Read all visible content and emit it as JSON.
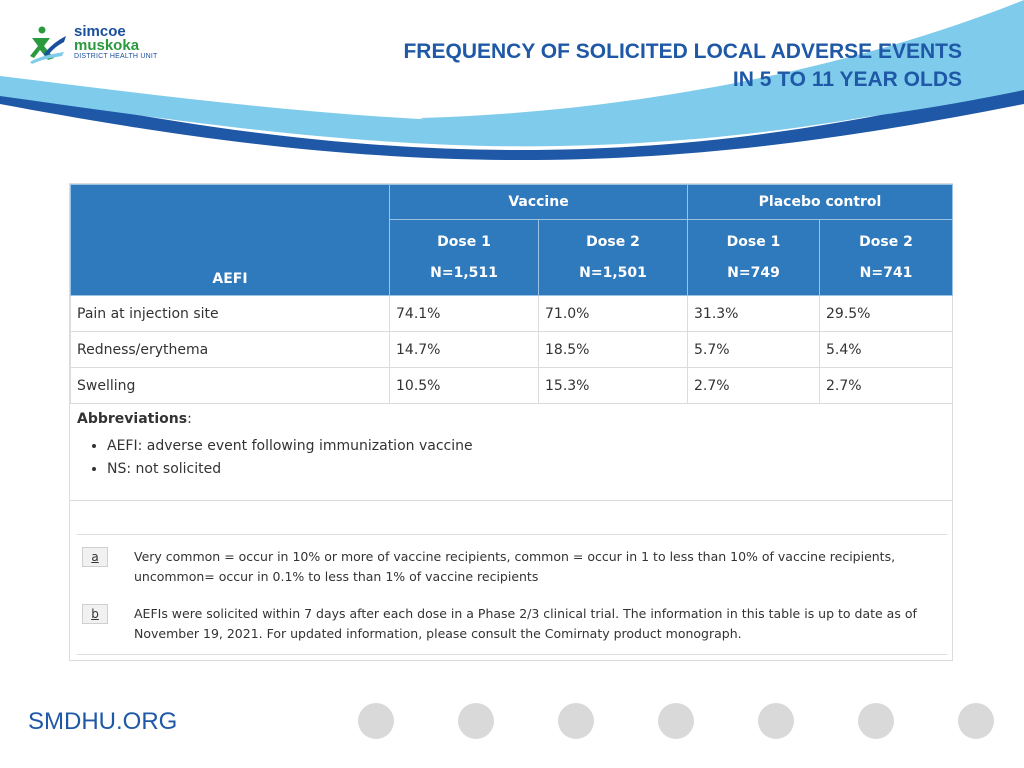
{
  "logo": {
    "line1": "simcoe",
    "line2": "muskoka",
    "line3": "DISTRICT HEALTH UNIT"
  },
  "title": {
    "line1": "FREQUENCY OF SOLICITED LOCAL ADVERSE EVENTS",
    "line2": "IN 5 TO 11 YEAR OLDS"
  },
  "table": {
    "aefi_header": "AEFI",
    "groups": [
      "Vaccine",
      "Placebo control"
    ],
    "columns": [
      {
        "dose": "Dose 1",
        "n": "N=1,511"
      },
      {
        "dose": "Dose 2",
        "n": "N=1,501"
      },
      {
        "dose": "Dose 1",
        "n": "N=749"
      },
      {
        "dose": "Dose 2",
        "n": "N=741"
      }
    ],
    "rows": [
      {
        "label": "Pain at injection site",
        "values": [
          "74.1%",
          "71.0%",
          "31.3%",
          "29.5%"
        ]
      },
      {
        "label": "Redness/erythema",
        "values": [
          "14.7%",
          "18.5%",
          "5.7%",
          "5.4%"
        ]
      },
      {
        "label": "Swelling",
        "values": [
          "10.5%",
          "15.3%",
          "2.7%",
          "2.7%"
        ]
      }
    ]
  },
  "abbreviations": {
    "heading": "Abbreviations",
    "colon": ":",
    "items": [
      "AEFI: adverse event following immunization vaccine",
      "NS: not solicited"
    ]
  },
  "footnotes": [
    {
      "mark": "a",
      "text": "Very common = occur in 10% or more of vaccine recipients, common = occur in 1 to less than 10% of vaccine recipients, uncommon= occur in 0.1% to less than 1% of vaccine recipients"
    },
    {
      "mark": "b",
      "text": "AEFIs were solicited within 7 days after each dose in a Phase 2/3 clinical trial. The information in this table is up to date as of November 19, 2021. For updated information, please consult the Comirnaty product monograph."
    }
  ],
  "footer": {
    "url": "SMDHU.ORG",
    "nav_dots": 7
  },
  "colors": {
    "title": "#1f58a6",
    "table_header": "#2f79bd",
    "swoosh_light": "#7fcbeb",
    "swoosh_dark": "#1f58a6",
    "dot": "#d9d9d9"
  }
}
